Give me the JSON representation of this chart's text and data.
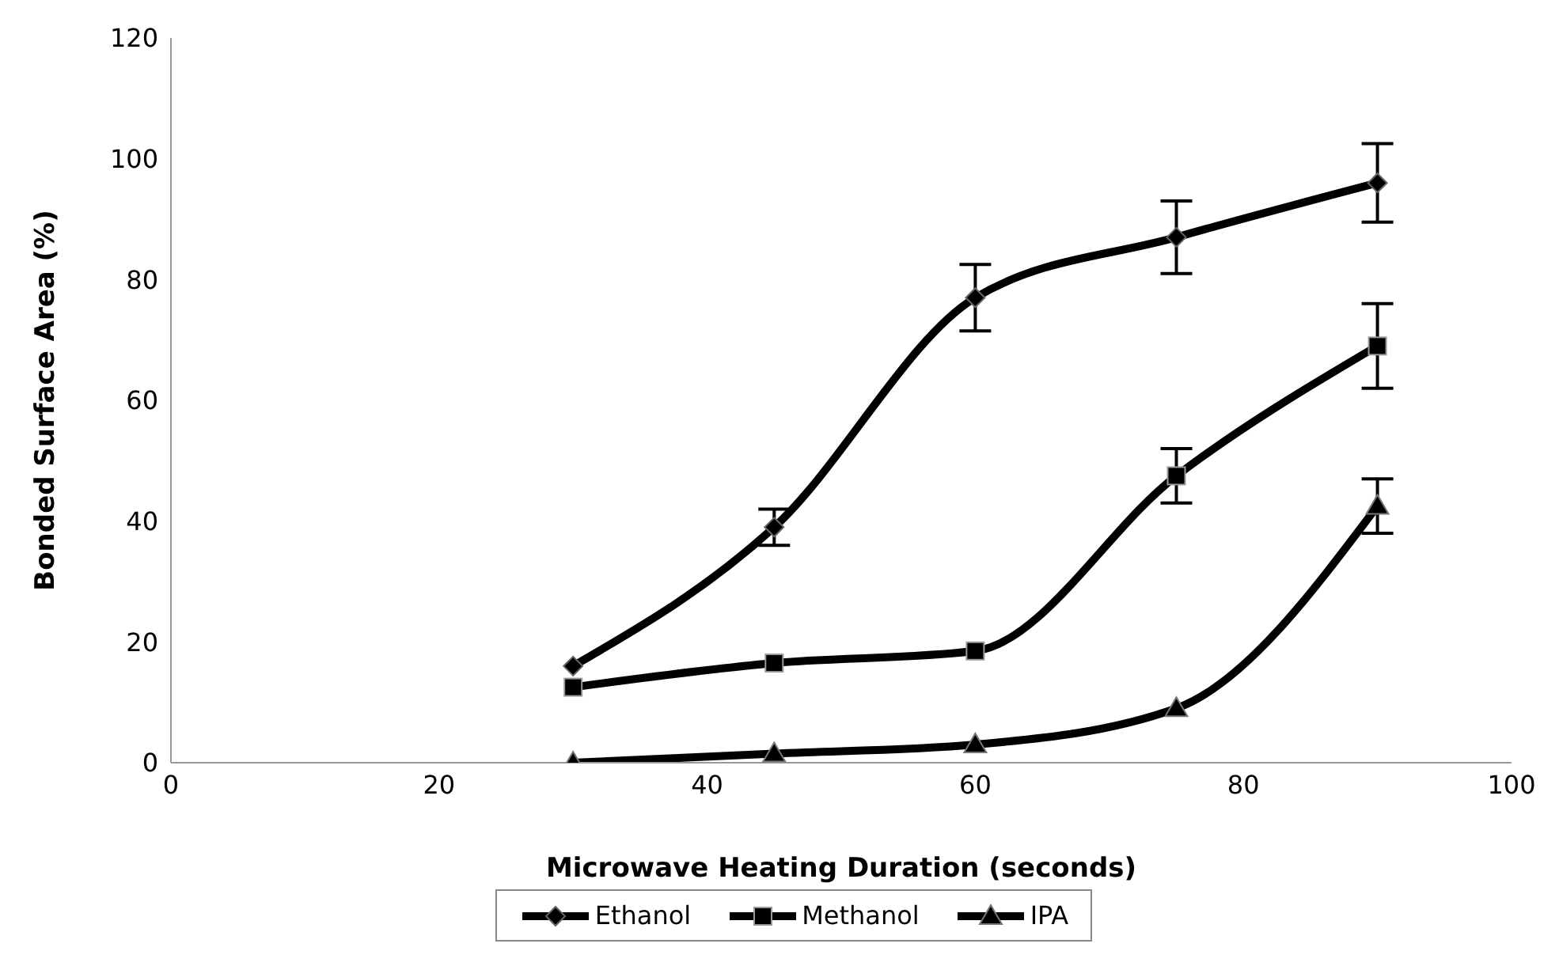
{
  "chart_data": {
    "type": "line",
    "xlabel": "Microwave Heating Duration (seconds)",
    "ylabel": "Bonded Surface Area (%)",
    "x": [
      30,
      45,
      60,
      75,
      90
    ],
    "xlim": [
      0,
      100
    ],
    "xticks": [
      0,
      20,
      40,
      60,
      80,
      100
    ],
    "ylim": [
      0,
      120
    ],
    "yticks": [
      0,
      20,
      40,
      60,
      80,
      100,
      120
    ],
    "grid": false,
    "legend": "bottom",
    "series": [
      {
        "name": "Ethanol",
        "color": "#000000",
        "marker": "diamond",
        "values": [
          16,
          39,
          77,
          87,
          96
        ],
        "errors": [
          null,
          3,
          5.5,
          6,
          6.5
        ]
      },
      {
        "name": "Methanol",
        "color": "#000000",
        "marker": "square",
        "values": [
          12.5,
          16.5,
          18.5,
          47.5,
          69
        ],
        "errors": [
          null,
          null,
          null,
          4.5,
          7
        ]
      },
      {
        "name": "IPA",
        "color": "#000000",
        "marker": "triangle",
        "values": [
          0,
          1.5,
          3,
          9,
          42.5
        ],
        "errors": [
          null,
          null,
          null,
          null,
          4.5
        ]
      }
    ]
  }
}
